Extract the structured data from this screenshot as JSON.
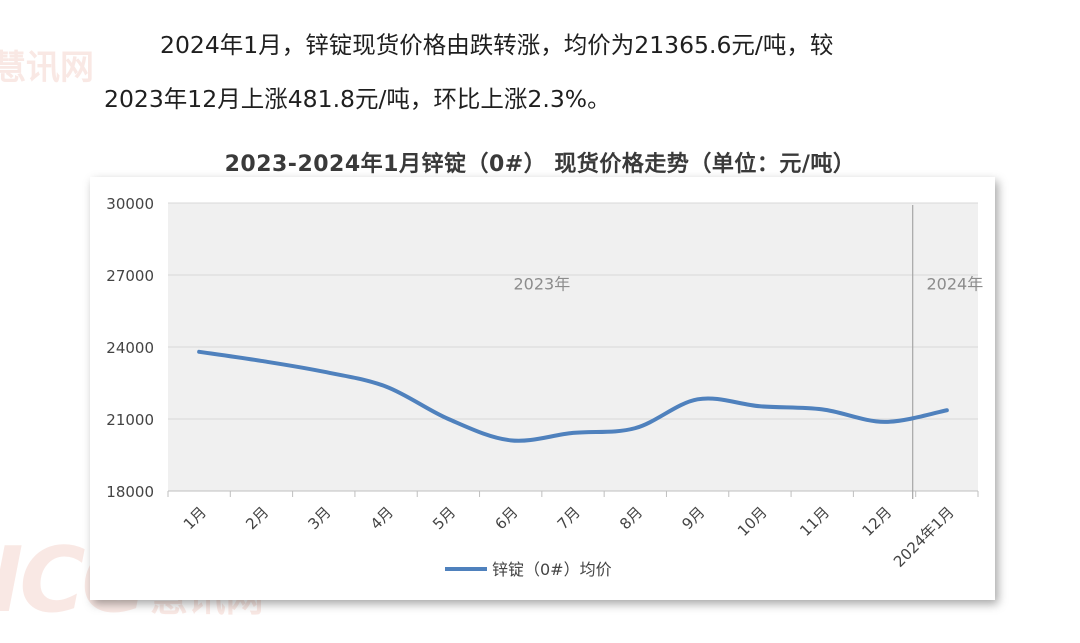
{
  "intro": {
    "line1": "2024年1月，锌锭现货价格由跌转涨，均价为21365.6元/吨，较",
    "line2": "2023年12月上涨481.8元/吨，环比上涨2.3%。"
  },
  "watermark": {
    "brand": "ICC",
    "cn": "慧讯网"
  },
  "chart_data": {
    "type": "line",
    "title": "2023-2024年1月锌锭（0#） 现货价格走势（单位：元/吨）",
    "categories": [
      "1月",
      "2月",
      "3月",
      "4月",
      "5月",
      "6月",
      "7月",
      "8月",
      "9月",
      "10月",
      "11月",
      "12月",
      "2024年1月"
    ],
    "series": [
      {
        "name": "锌锭（0#）均价",
        "color": "#4f81bd",
        "values": [
          23800,
          23420,
          22970,
          22350,
          21000,
          20110,
          20420,
          20620,
          21820,
          21530,
          21400,
          20880,
          21365.6
        ]
      }
    ],
    "ylim": [
      18000,
      30000
    ],
    "yticks": [
      18000,
      21000,
      24000,
      27000,
      30000
    ],
    "period_labels": [
      "2023年",
      "2024年"
    ],
    "grid": true,
    "legend_position": "bottom",
    "plot_background": "#f0f0f0",
    "gridline_color": "#d9d9d9"
  }
}
